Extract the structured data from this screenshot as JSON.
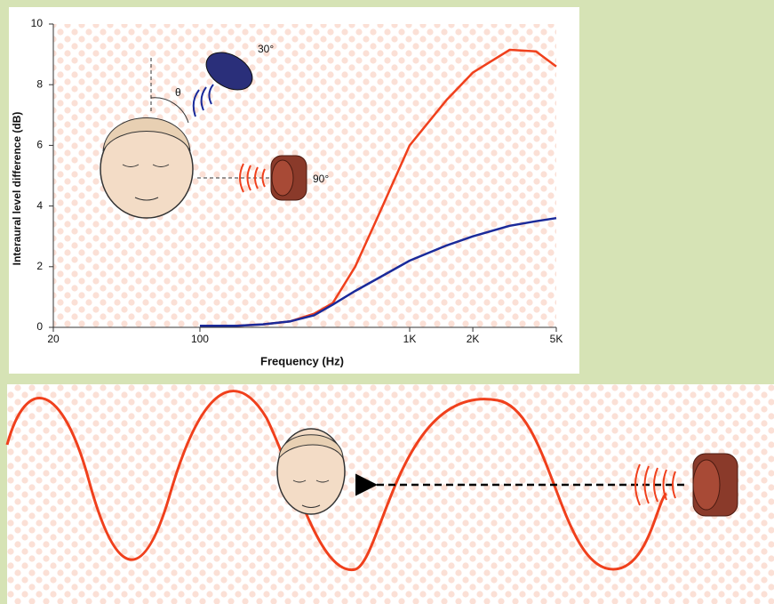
{
  "chart_data": {
    "type": "line",
    "x_label": "Frequency (Hz)",
    "y_label": "Interaural  level difference (dB)",
    "angle_label": "θ",
    "xscale": "log",
    "x": [
      100,
      150,
      200,
      270,
      350,
      430,
      550,
      700,
      1000,
      1500,
      2000,
      3000,
      4000,
      5000
    ],
    "series": [
      {
        "name": "90°",
        "color": "#f0401c",
        "values": [
          0.05,
          0.05,
          0.1,
          0.2,
          0.45,
          0.8,
          2.0,
          3.6,
          6.0,
          7.5,
          8.4,
          9.15,
          9.1,
          8.6
        ]
      },
      {
        "name": "30°",
        "color": "#1a2a9a",
        "values": [
          0.05,
          0.05,
          0.1,
          0.2,
          0.4,
          0.75,
          1.2,
          1.6,
          2.2,
          2.7,
          3.0,
          3.35,
          3.5,
          3.6
        ]
      }
    ],
    "xlim": [
      20,
      5000
    ],
    "xticks": [
      20,
      100,
      {
        "value": 1000,
        "label": "1K"
      },
      {
        "value": 2000,
        "label": "2K"
      },
      {
        "value": 5000,
        "label": "5K"
      }
    ],
    "ylim": [
      0,
      10
    ],
    "yticks": [
      0,
      2,
      4,
      6,
      8,
      10
    ]
  }
}
